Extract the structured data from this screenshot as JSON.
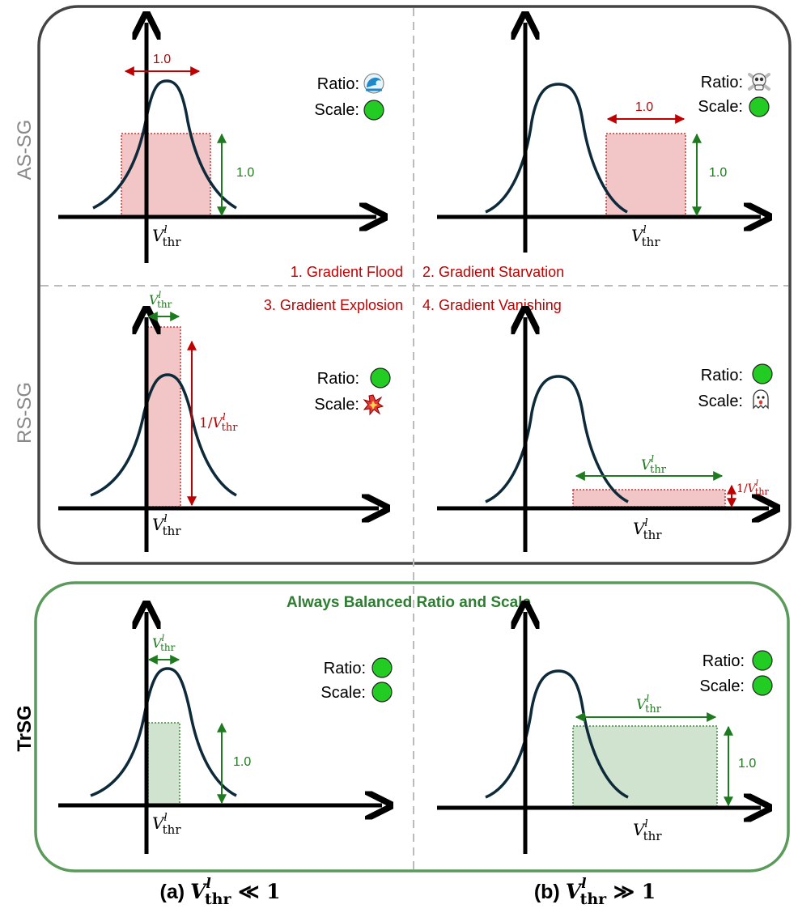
{
  "rows": {
    "as_sg": "AS-SG",
    "rs_sg": "RS-SG",
    "trsg": "TrSG"
  },
  "labels": {
    "ratio": "Ratio:",
    "scale": "Scale:",
    "one": "1.0",
    "v_base": "V",
    "v_sup": "l",
    "v_sub": "thr",
    "inv_prefix": "1/"
  },
  "problems": {
    "p1": "1. Gradient Flood",
    "p2": "2. Gradient Starvation",
    "p3": "3. Gradient Explosion",
    "p4": "4. Gradient Vanishing"
  },
  "balanced_title": "Always Balanced Ratio and Scale",
  "captions": {
    "a_prefix": "(a) ",
    "a_rel": " ≪ 1",
    "b_prefix": "(b) ",
    "b_rel": " ≫ 1"
  },
  "indicators": {
    "as_left": {
      "ratio": "wave-icon",
      "scale": "ok-icon"
    },
    "as_right": {
      "ratio": "skull-icon",
      "scale": "ok-icon"
    },
    "rs_left": {
      "ratio": "ok-icon",
      "scale": "explosion-icon"
    },
    "rs_right": {
      "ratio": "ok-icon",
      "scale": "ghost-icon"
    },
    "tr_left": {
      "ratio": "ok-icon",
      "scale": "ok-icon"
    },
    "tr_right": {
      "ratio": "ok-icon",
      "scale": "ok-icon"
    }
  },
  "colors": {
    "frame": "#444444",
    "trsg_frame": "#5a9a5a",
    "problem_red": "#c00000",
    "dim_green": "#1e7a1e",
    "ok_green": "#22cc22",
    "red_fill": "#f2c6c6",
    "green_fill": "#cfe3cf",
    "curve": "#0d2a3a"
  }
}
